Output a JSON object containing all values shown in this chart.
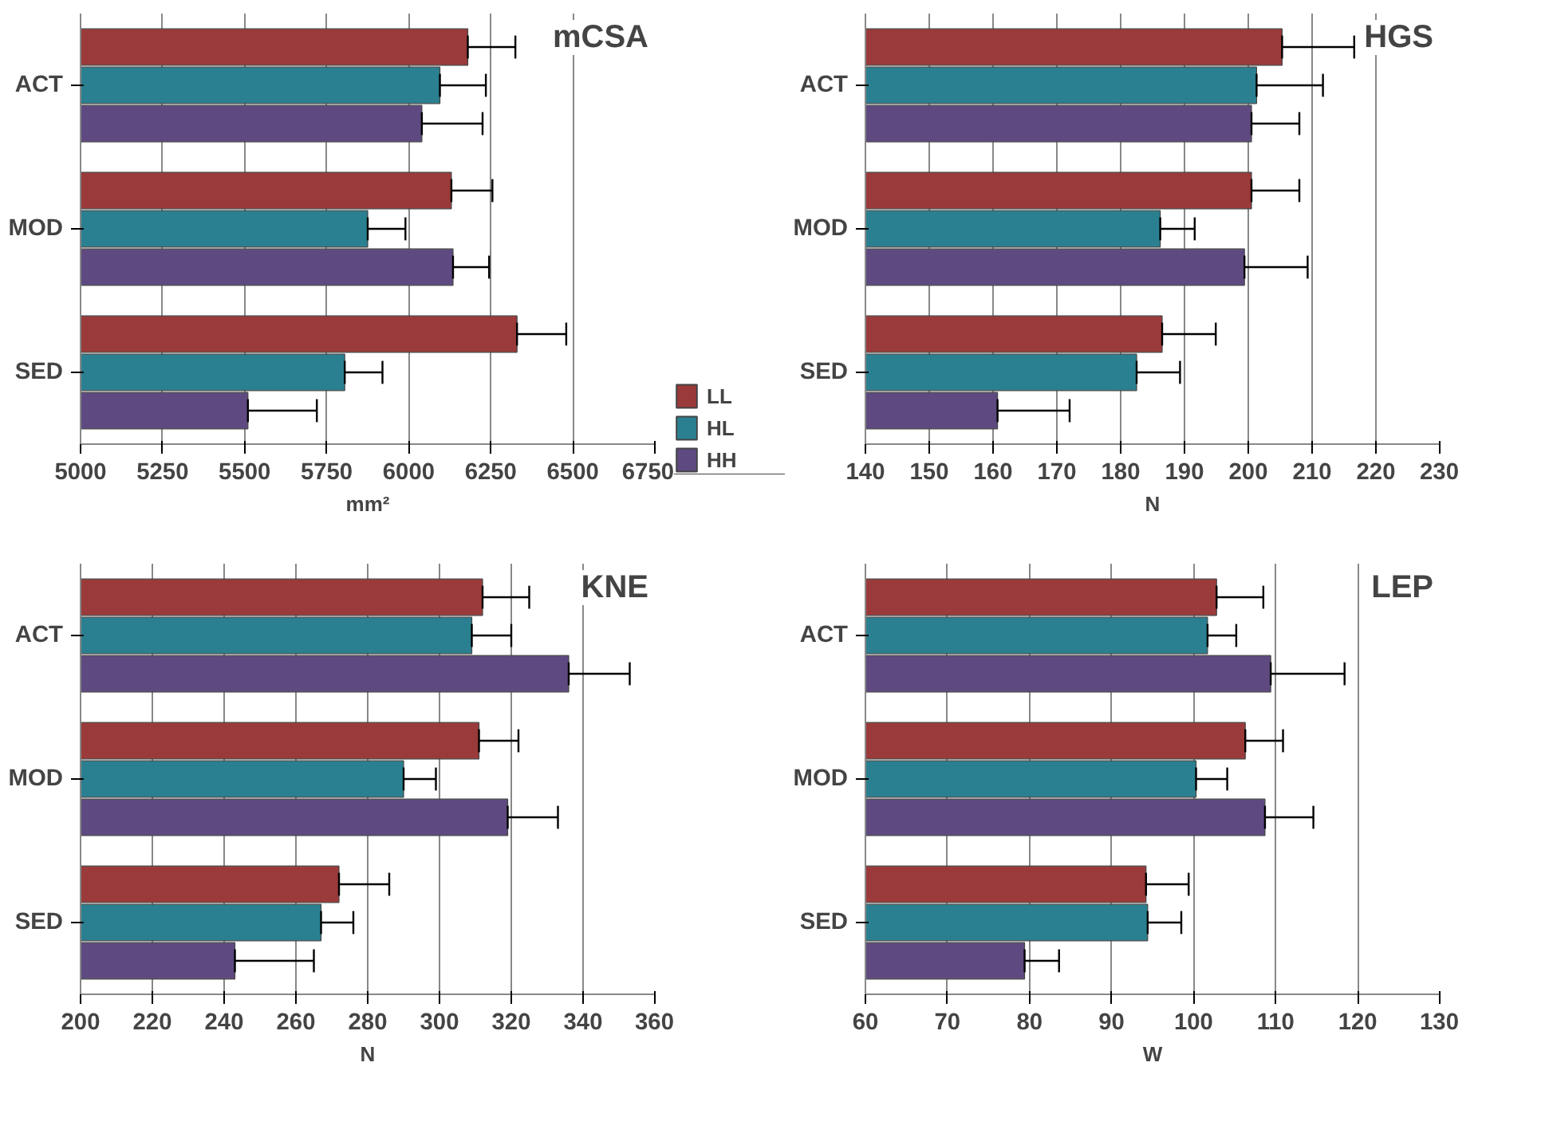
{
  "chart_data": [
    {
      "type": "bar",
      "orientation": "horizontal",
      "title": "mCSA",
      "xlabel": "mm²",
      "categories": [
        "ACT",
        "MOD",
        "SED"
      ],
      "xlim": [
        5000,
        6750
      ],
      "xticks": [
        5000,
        5250,
        5500,
        5750,
        6000,
        6250,
        6500,
        6750
      ],
      "grid": "x",
      "legend": "right",
      "series": [
        {
          "name": "LL",
          "color": "#9b3a3a",
          "values": [
            6180,
            6130,
            6330
          ],
          "errors": [
            [
              6180,
              6325
            ],
            [
              6130,
              6255
            ],
            [
              6330,
              6480
            ]
          ]
        },
        {
          "name": "HL",
          "color": "#2a8090",
          "values": [
            6095,
            5875,
            5805
          ],
          "errors": [
            [
              6095,
              6235
            ],
            [
              5875,
              5990
            ],
            [
              5805,
              5920
            ]
          ]
        },
        {
          "name": "HH",
          "color": "#5e4a80",
          "values": [
            6040,
            6135,
            5510
          ],
          "errors": [
            [
              6040,
              6225
            ],
            [
              6135,
              6245
            ],
            [
              5510,
              5720
            ]
          ]
        }
      ]
    },
    {
      "type": "bar",
      "orientation": "horizontal",
      "title": "HGS",
      "xlabel": "N",
      "categories": [
        "ACT",
        "MOD",
        "SED"
      ],
      "xlim": [
        140,
        230
      ],
      "xticks": [
        140,
        150,
        160,
        170,
        180,
        190,
        200,
        210,
        220,
        230
      ],
      "grid": "x",
      "series": [
        {
          "color": "#9b3a3a",
          "values": [
            205.3,
            200.5,
            186.5
          ],
          "errors": [
            [
              205.3,
              216.6
            ],
            [
              200.5,
              208
            ],
            [
              186.5,
              194.9
            ]
          ]
        },
        {
          "color": "#2a8090",
          "values": [
            201.3,
            186.2,
            182.5
          ],
          "errors": [
            [
              201.3,
              211.7
            ],
            [
              186.2,
              191.6
            ],
            [
              182.5,
              189.3
            ]
          ]
        },
        {
          "color": "#5e4a80",
          "values": [
            200.5,
            199.4,
            160.7
          ],
          "errors": [
            [
              200.5,
              208
            ],
            [
              199.4,
              209.3
            ],
            [
              160.7,
              172
            ]
          ]
        }
      ]
    },
    {
      "type": "bar",
      "orientation": "horizontal",
      "title": "KNE",
      "xlabel": "N",
      "categories": [
        "ACT",
        "MOD",
        "SED"
      ],
      "xlim": [
        200,
        360
      ],
      "xticks": [
        200,
        220,
        240,
        260,
        280,
        300,
        320,
        340,
        360
      ],
      "grid": "x",
      "series": [
        {
          "color": "#9b3a3a",
          "values": [
            312,
            311,
            272
          ],
          "errors": [
            [
              312,
              325
            ],
            [
              311,
              322
            ],
            [
              272,
              286
            ]
          ]
        },
        {
          "color": "#2a8090",
          "values": [
            309,
            290,
            267
          ],
          "errors": [
            [
              309,
              320
            ],
            [
              290,
              299
            ],
            [
              267,
              276
            ]
          ]
        },
        {
          "color": "#5e4a80",
          "values": [
            336,
            319,
            243
          ],
          "errors": [
            [
              336,
              353
            ],
            [
              319,
              333
            ],
            [
              243,
              265
            ]
          ]
        }
      ]
    },
    {
      "type": "bar",
      "orientation": "horizontal",
      "title": "LEP",
      "xlabel": "W",
      "categories": [
        "ACT",
        "MOD",
        "SED"
      ],
      "xlim": [
        60,
        130
      ],
      "xticks": [
        60,
        70,
        80,
        90,
        100,
        110,
        120,
        130
      ],
      "grid": "x",
      "series": [
        {
          "color": "#9b3a3a",
          "values": [
            102.8,
            106.3,
            94.2
          ],
          "errors": [
            [
              102.8,
              108.5
            ],
            [
              106.3,
              110.9
            ],
            [
              94.2,
              99.4
            ]
          ]
        },
        {
          "color": "#2a8090",
          "values": [
            101.7,
            100.3,
            94.4
          ],
          "errors": [
            [
              101.7,
              105.2
            ],
            [
              100.3,
              104.1
            ],
            [
              94.4,
              98.5
            ]
          ]
        },
        {
          "color": "#5e4a80",
          "values": [
            109.4,
            108.7,
            79.4
          ],
          "errors": [
            [
              109.4,
              118.4
            ],
            [
              108.7,
              114.6
            ],
            [
              79.4,
              83.6
            ]
          ]
        }
      ]
    }
  ]
}
